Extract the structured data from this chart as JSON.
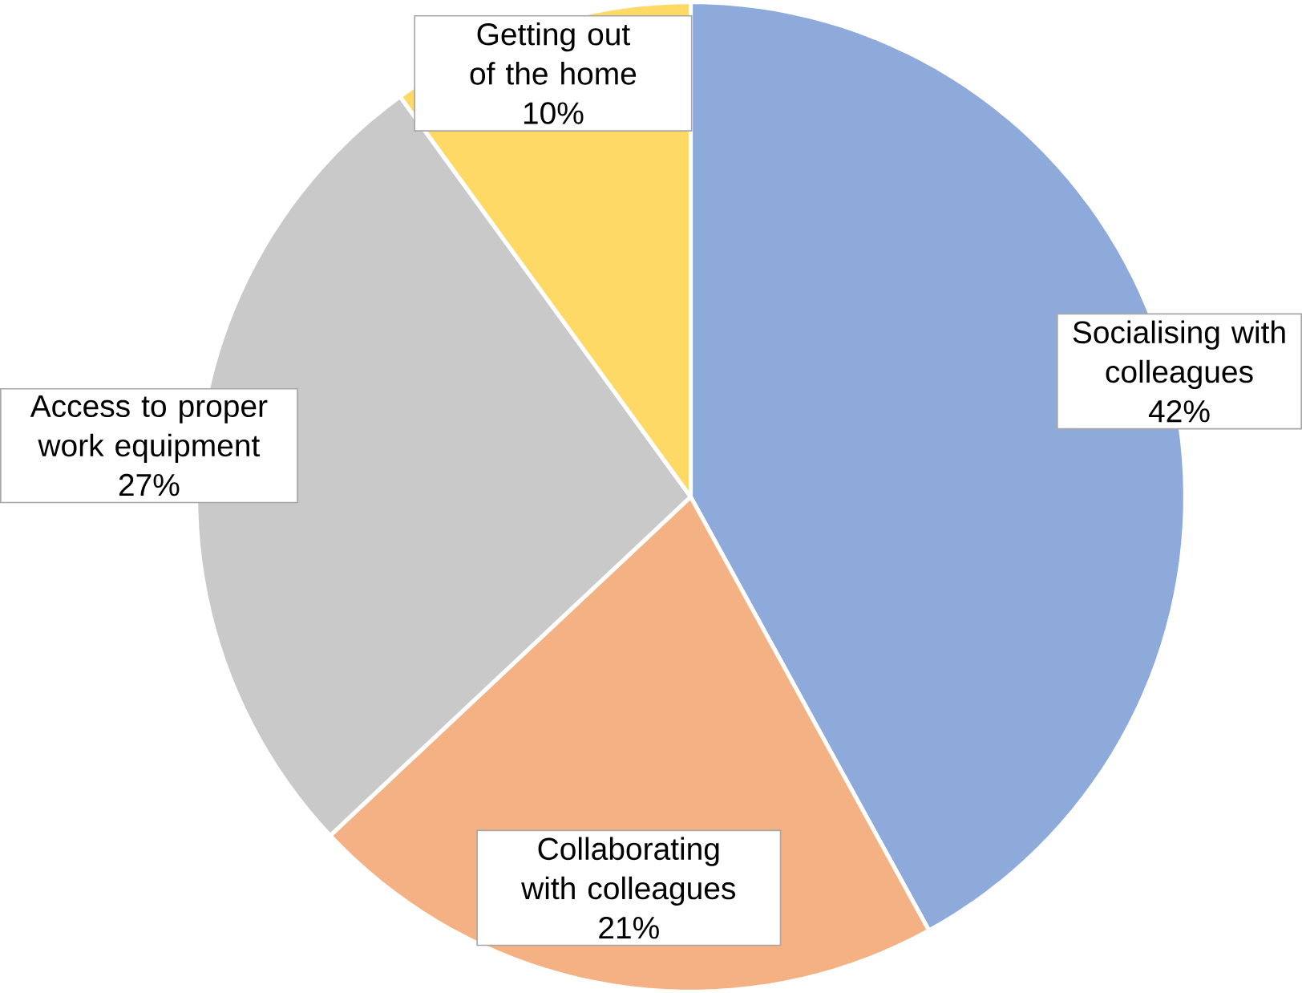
{
  "chart_data": {
    "type": "pie",
    "categories": [
      "Socialising with colleagues",
      "Collaborating with colleagues",
      "Access to proper work equipment",
      "Getting out of the home"
    ],
    "values": [
      42,
      21,
      27,
      10
    ],
    "value_labels": [
      "42%",
      "21%",
      "27%",
      "10%"
    ],
    "colors": [
      "#8eaadb",
      "#f4b183",
      "#c9c9c9",
      "#ffd966"
    ]
  }
}
